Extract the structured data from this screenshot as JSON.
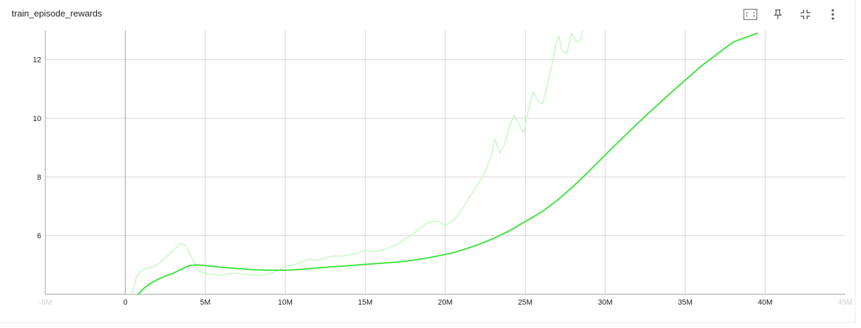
{
  "card": {
    "title": "train_episode_rewards"
  },
  "toolbar": {
    "icons": [
      "fit-domain-icon",
      "pin-icon",
      "collapse-icon",
      "more-vert-icon"
    ]
  },
  "colors": {
    "line": "#3ee23e",
    "raw_line": "#c8f7c8",
    "grid": "#d6d6d6",
    "axis": "#9e9e9e",
    "zero_axis": "#aaaaaa"
  },
  "chart_data": {
    "type": "line",
    "title": "train_episode_rewards",
    "xlabel": "",
    "ylabel": "",
    "xlim": [
      -5000000,
      45000000
    ],
    "ylim": [
      4,
      13
    ],
    "x_ticks": [
      -5000000,
      0,
      5000000,
      10000000,
      15000000,
      20000000,
      25000000,
      30000000,
      35000000,
      40000000,
      45000000
    ],
    "x_tick_labels": [
      "-5M",
      "0",
      "5M",
      "10M",
      "15M",
      "20M",
      "25M",
      "30M",
      "35M",
      "40M",
      "45M"
    ],
    "x_tick_faint": [
      true,
      false,
      false,
      false,
      false,
      false,
      false,
      false,
      false,
      false,
      true
    ],
    "y_ticks": [
      6,
      8,
      10,
      12
    ],
    "y_tick_labels": [
      "6",
      "8",
      "10",
      "12"
    ],
    "grid": true,
    "legend": "none",
    "series": [
      {
        "style": "raw",
        "x": [
          400000,
          700000,
          1000000,
          1400000,
          1800000,
          2200000,
          2600000,
          3000000,
          3400000,
          3700000,
          3900000,
          4200000,
          4600000,
          5000000,
          5500000,
          6000000,
          6500000,
          7000000,
          7500000,
          8000000,
          8500000,
          9000000,
          9500000,
          10000000,
          10500000,
          11000000,
          11500000,
          12000000,
          12500000,
          13000000,
          13500000,
          14000000,
          14500000,
          15000000,
          15500000,
          16000000,
          16500000,
          17000000,
          17500000,
          18000000,
          18500000,
          19000000,
          19500000,
          20000000,
          20500000,
          21000000,
          21500000,
          22000000,
          22500000,
          22800000,
          23100000,
          23400000,
          23700000,
          24000000,
          24300000,
          24600000,
          24900000,
          25200000,
          25500000,
          25800000,
          26100000,
          26400000,
          26700000,
          26900000,
          27100000,
          27300000,
          27600000,
          27900000,
          28200000,
          28500000,
          28600000
        ],
        "y": [
          4.0,
          4.6,
          4.8,
          4.9,
          4.95,
          5.1,
          5.3,
          5.5,
          5.72,
          5.7,
          5.5,
          5.2,
          4.8,
          4.72,
          4.68,
          4.65,
          4.7,
          4.72,
          4.68,
          4.66,
          4.65,
          4.7,
          4.8,
          4.95,
          5.0,
          5.1,
          5.2,
          5.15,
          5.25,
          5.3,
          5.3,
          5.35,
          5.4,
          5.5,
          5.45,
          5.5,
          5.6,
          5.7,
          5.9,
          6.05,
          6.3,
          6.45,
          6.5,
          6.35,
          6.5,
          6.85,
          7.3,
          7.7,
          8.2,
          8.6,
          9.3,
          8.8,
          9.1,
          9.7,
          10.1,
          9.8,
          9.5,
          10.3,
          10.9,
          10.6,
          10.5,
          11.2,
          11.9,
          12.5,
          12.8,
          12.3,
          12.2,
          12.9,
          12.6,
          12.7,
          13.0
        ]
      },
      {
        "style": "smoothed",
        "x": [
          800000,
          1200000,
          1600000,
          2000000,
          2500000,
          3000000,
          3500000,
          4000000,
          4500000,
          5000000,
          6000000,
          7000000,
          8000000,
          9000000,
          10000000,
          11000000,
          12000000,
          13000000,
          14000000,
          15000000,
          16000000,
          17000000,
          18000000,
          19000000,
          20000000,
          20500000,
          21000000,
          22000000,
          23000000,
          24000000,
          25000000,
          26000000,
          27000000,
          28000000,
          29000000,
          30000000,
          32000000,
          34000000,
          36000000,
          38000000,
          39500000
        ],
        "y": [
          4.0,
          4.22,
          4.38,
          4.5,
          4.62,
          4.72,
          4.85,
          4.98,
          5.0,
          4.98,
          4.92,
          4.88,
          4.84,
          4.82,
          4.82,
          4.85,
          4.9,
          4.94,
          4.98,
          5.02,
          5.06,
          5.1,
          5.16,
          5.25,
          5.36,
          5.42,
          5.5,
          5.68,
          5.9,
          6.16,
          6.48,
          6.8,
          7.2,
          7.68,
          8.2,
          8.75,
          9.82,
          10.82,
          11.78,
          12.6,
          12.9
        ]
      }
    ]
  }
}
